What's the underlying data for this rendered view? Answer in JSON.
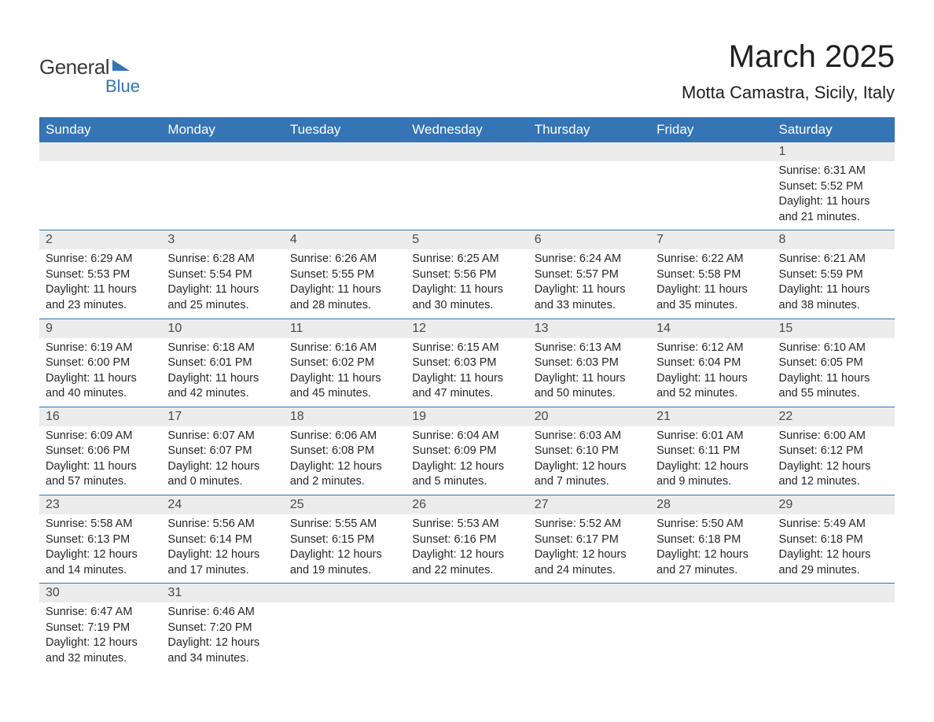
{
  "logo": {
    "text1": "General",
    "text2": "Blue"
  },
  "title": "March 2025",
  "location": "Motta Camastra, Sicily, Italy",
  "colors": {
    "header_bg": "#3574b5",
    "header_fg": "#ffffff",
    "daynum_bg": "#ececec",
    "row_border": "#3574b5",
    "text": "#272727",
    "logo_accent": "#3574b5"
  },
  "fonts": {
    "title_size_pt": 30,
    "location_size_pt": 16,
    "header_size_pt": 13,
    "body_size_pt": 11
  },
  "day_headers": [
    "Sunday",
    "Monday",
    "Tuesday",
    "Wednesday",
    "Thursday",
    "Friday",
    "Saturday"
  ],
  "weeks": [
    [
      null,
      null,
      null,
      null,
      null,
      null,
      {
        "n": "1",
        "sunrise": "6:31 AM",
        "sunset": "5:52 PM",
        "dl": "11 hours and 21 minutes."
      }
    ],
    [
      {
        "n": "2",
        "sunrise": "6:29 AM",
        "sunset": "5:53 PM",
        "dl": "11 hours and 23 minutes."
      },
      {
        "n": "3",
        "sunrise": "6:28 AM",
        "sunset": "5:54 PM",
        "dl": "11 hours and 25 minutes."
      },
      {
        "n": "4",
        "sunrise": "6:26 AM",
        "sunset": "5:55 PM",
        "dl": "11 hours and 28 minutes."
      },
      {
        "n": "5",
        "sunrise": "6:25 AM",
        "sunset": "5:56 PM",
        "dl": "11 hours and 30 minutes."
      },
      {
        "n": "6",
        "sunrise": "6:24 AM",
        "sunset": "5:57 PM",
        "dl": "11 hours and 33 minutes."
      },
      {
        "n": "7",
        "sunrise": "6:22 AM",
        "sunset": "5:58 PM",
        "dl": "11 hours and 35 minutes."
      },
      {
        "n": "8",
        "sunrise": "6:21 AM",
        "sunset": "5:59 PM",
        "dl": "11 hours and 38 minutes."
      }
    ],
    [
      {
        "n": "9",
        "sunrise": "6:19 AM",
        "sunset": "6:00 PM",
        "dl": "11 hours and 40 minutes."
      },
      {
        "n": "10",
        "sunrise": "6:18 AM",
        "sunset": "6:01 PM",
        "dl": "11 hours and 42 minutes."
      },
      {
        "n": "11",
        "sunrise": "6:16 AM",
        "sunset": "6:02 PM",
        "dl": "11 hours and 45 minutes."
      },
      {
        "n": "12",
        "sunrise": "6:15 AM",
        "sunset": "6:03 PM",
        "dl": "11 hours and 47 minutes."
      },
      {
        "n": "13",
        "sunrise": "6:13 AM",
        "sunset": "6:03 PM",
        "dl": "11 hours and 50 minutes."
      },
      {
        "n": "14",
        "sunrise": "6:12 AM",
        "sunset": "6:04 PM",
        "dl": "11 hours and 52 minutes."
      },
      {
        "n": "15",
        "sunrise": "6:10 AM",
        "sunset": "6:05 PM",
        "dl": "11 hours and 55 minutes."
      }
    ],
    [
      {
        "n": "16",
        "sunrise": "6:09 AM",
        "sunset": "6:06 PM",
        "dl": "11 hours and 57 minutes."
      },
      {
        "n": "17",
        "sunrise": "6:07 AM",
        "sunset": "6:07 PM",
        "dl": "12 hours and 0 minutes."
      },
      {
        "n": "18",
        "sunrise": "6:06 AM",
        "sunset": "6:08 PM",
        "dl": "12 hours and 2 minutes."
      },
      {
        "n": "19",
        "sunrise": "6:04 AM",
        "sunset": "6:09 PM",
        "dl": "12 hours and 5 minutes."
      },
      {
        "n": "20",
        "sunrise": "6:03 AM",
        "sunset": "6:10 PM",
        "dl": "12 hours and 7 minutes."
      },
      {
        "n": "21",
        "sunrise": "6:01 AM",
        "sunset": "6:11 PM",
        "dl": "12 hours and 9 minutes."
      },
      {
        "n": "22",
        "sunrise": "6:00 AM",
        "sunset": "6:12 PM",
        "dl": "12 hours and 12 minutes."
      }
    ],
    [
      {
        "n": "23",
        "sunrise": "5:58 AM",
        "sunset": "6:13 PM",
        "dl": "12 hours and 14 minutes."
      },
      {
        "n": "24",
        "sunrise": "5:56 AM",
        "sunset": "6:14 PM",
        "dl": "12 hours and 17 minutes."
      },
      {
        "n": "25",
        "sunrise": "5:55 AM",
        "sunset": "6:15 PM",
        "dl": "12 hours and 19 minutes."
      },
      {
        "n": "26",
        "sunrise": "5:53 AM",
        "sunset": "6:16 PM",
        "dl": "12 hours and 22 minutes."
      },
      {
        "n": "27",
        "sunrise": "5:52 AM",
        "sunset": "6:17 PM",
        "dl": "12 hours and 24 minutes."
      },
      {
        "n": "28",
        "sunrise": "5:50 AM",
        "sunset": "6:18 PM",
        "dl": "12 hours and 27 minutes."
      },
      {
        "n": "29",
        "sunrise": "5:49 AM",
        "sunset": "6:18 PM",
        "dl": "12 hours and 29 minutes."
      }
    ],
    [
      {
        "n": "30",
        "sunrise": "6:47 AM",
        "sunset": "7:19 PM",
        "dl": "12 hours and 32 minutes."
      },
      {
        "n": "31",
        "sunrise": "6:46 AM",
        "sunset": "7:20 PM",
        "dl": "12 hours and 34 minutes."
      },
      null,
      null,
      null,
      null,
      null
    ]
  ],
  "labels": {
    "sunrise": "Sunrise: ",
    "sunset": "Sunset: ",
    "daylight": "Daylight: "
  }
}
